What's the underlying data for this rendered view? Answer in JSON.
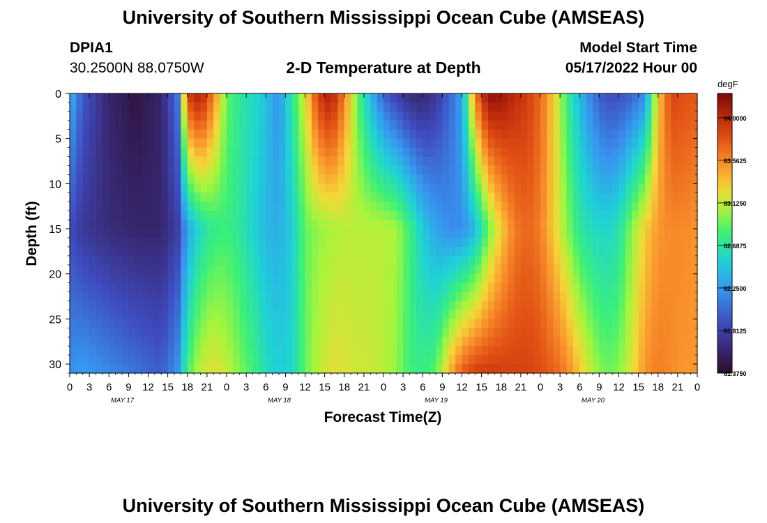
{
  "page": {
    "title_top": "University of Southern Mississippi Ocean Cube (AMSEAS)",
    "title_bottom": "University of Southern Mississippi Ocean Cube (AMSEAS)",
    "station_id": "DPIA1",
    "station_coords": "30.2500N  88.0750W",
    "subtitle": "2-D Temperature at Depth",
    "model_start_label": "Model Start Time",
    "model_start_value": "05/17/2022 Hour 00"
  },
  "chart_data": {
    "type": "heatmap",
    "title": "2-D Temperature at Depth",
    "xlabel": "Forecast Time(Z)",
    "ylabel": "Depth (ft)",
    "x_tick_labels": [
      "0",
      "3",
      "6",
      "9",
      "12",
      "15",
      "18",
      "21",
      "0",
      "3",
      "6",
      "9",
      "12",
      "15",
      "18",
      "21",
      "0",
      "3",
      "6",
      "9",
      "12",
      "15",
      "18",
      "21",
      "0",
      "3",
      "6",
      "9",
      "12",
      "15",
      "18",
      "21",
      "0"
    ],
    "x_range_hours": [
      0,
      96
    ],
    "day_labels": [
      {
        "label": "MAY 17",
        "center_hour": 12
      },
      {
        "label": "MAY 18",
        "center_hour": 36
      },
      {
        "label": "MAY 19",
        "center_hour": 60
      },
      {
        "label": "MAY 20",
        "center_hour": 84
      }
    ],
    "y_range_ft": [
      0,
      31
    ],
    "y_inverted": true,
    "y_ticks": [
      0,
      5,
      10,
      15,
      20,
      25,
      30
    ],
    "colorbar": {
      "unit": "degF",
      "min": 81.375,
      "max": 84.25,
      "tick_labels": [
        "84.0000",
        "83.5625",
        "83.1250",
        "82.6875",
        "82.2500",
        "81.8125",
        "81.3750"
      ],
      "tick_values": [
        84.0,
        83.5625,
        83.125,
        82.6875,
        82.25,
        81.8125,
        81.375
      ]
    },
    "surface_depths_ft": [
      0,
      15,
      30
    ],
    "hours": [
      0,
      2,
      6,
      10,
      14,
      16.5,
      18,
      20,
      22,
      24,
      26,
      28,
      30,
      32,
      34,
      36,
      38,
      40,
      42,
      44,
      46,
      48,
      50,
      52,
      54,
      56,
      58,
      60,
      62,
      64,
      66,
      68,
      70,
      72,
      74,
      76,
      78,
      80,
      82,
      84,
      86,
      88,
      90,
      92,
      94,
      96
    ],
    "temperature_surface_degF": [
      82.4,
      81.95,
      81.6,
      81.45,
      81.6,
      82.1,
      83.9,
      84.1,
      83.6,
      82.9,
      82.7,
      82.6,
      82.45,
      82.2,
      82.7,
      83.2,
      83.9,
      84.1,
      83.6,
      82.9,
      82.4,
      82.0,
      81.8,
      81.65,
      81.6,
      81.75,
      82.0,
      82.3,
      83.6,
      84.2,
      84.15,
      84.0,
      83.9,
      83.7,
      83.3,
      82.8,
      82.4,
      82.1,
      81.9,
      81.9,
      82.0,
      82.2,
      83.3,
      83.85,
      83.8,
      83.75
    ],
    "temperature_mid_degF": [
      81.9,
      81.75,
      81.65,
      81.6,
      81.6,
      81.8,
      82.3,
      82.6,
      82.75,
      82.8,
      82.7,
      82.55,
      82.4,
      82.35,
      82.5,
      82.9,
      83.0,
      83.05,
      83.1,
      83.1,
      83.1,
      83.1,
      83.05,
      82.8,
      82.5,
      82.3,
      82.2,
      82.2,
      82.4,
      82.9,
      83.3,
      83.6,
      83.7,
      83.6,
      83.3,
      83.0,
      82.7,
      82.6,
      82.55,
      82.65,
      83.0,
      83.3,
      83.5,
      83.55,
      83.55,
      83.5
    ],
    "temperature_bottom_degF": [
      82.2,
      82.25,
      82.15,
      82.05,
      81.95,
      82.2,
      82.8,
      83.1,
      83.2,
      83.1,
      82.95,
      82.8,
      82.6,
      82.5,
      82.55,
      82.9,
      83.1,
      83.2,
      83.2,
      83.15,
      83.15,
      83.1,
      83.0,
      82.8,
      82.75,
      82.85,
      83.3,
      83.65,
      83.8,
      83.85,
      83.85,
      83.85,
      83.85,
      83.8,
      83.7,
      83.55,
      83.3,
      83.05,
      82.9,
      82.95,
      83.2,
      83.5,
      83.6,
      83.55,
      83.5,
      83.5
    ]
  }
}
